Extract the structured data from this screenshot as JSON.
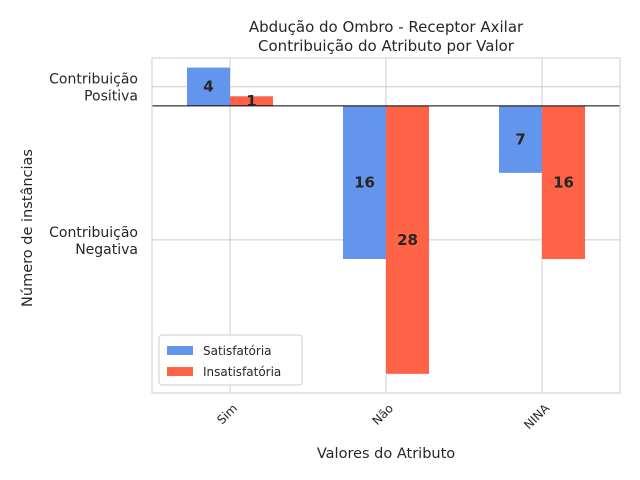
{
  "chart_data": {
    "type": "bar",
    "title": "Abdução do Ombro - Receptor Axilar",
    "subtitle": "Contribuição do Atributo por Valor",
    "xlabel": "Valores do Atributo",
    "ylabel": "Número de instâncias",
    "categories": [
      "Sim",
      "Não",
      "NINA"
    ],
    "series": [
      {
        "name": "Satisfatória",
        "color": "#6495ED",
        "values": [
          4,
          -16,
          -7
        ],
        "labels": [
          "4",
          "16",
          "7"
        ]
      },
      {
        "name": "Insatisfatória",
        "color": "#FF6347",
        "values": [
          1,
          -28,
          -16
        ],
        "labels": [
          "1",
          "28",
          "16"
        ]
      }
    ],
    "y_tick_labels": [
      {
        "value": 2,
        "line1": "Contribuição",
        "line2": "Positiva"
      },
      {
        "value": -14,
        "line1": "Contribuição",
        "line2": "Negativa"
      }
    ],
    "ylim": [
      -30,
      5
    ],
    "grid": true,
    "legend": "lower-left"
  }
}
